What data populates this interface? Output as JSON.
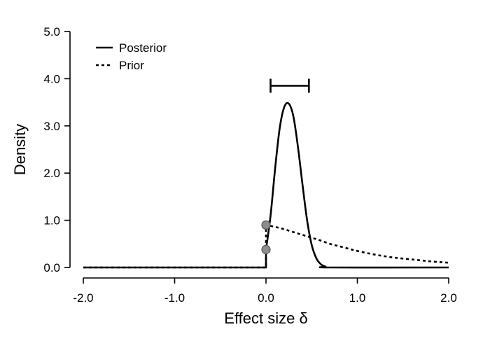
{
  "chart_data": {
    "type": "line",
    "title": "",
    "xlabel": "Effect size δ",
    "ylabel": "Density",
    "xlim": [
      -2.0,
      2.0
    ],
    "ylim": [
      0.0,
      5.0
    ],
    "x_ticks": [
      "-2.0",
      "-1.0",
      "0.0",
      "1.0",
      "2.0"
    ],
    "y_ticks": [
      "0.0",
      "1.0",
      "2.0",
      "3.0",
      "4.0",
      "5.0"
    ],
    "legend_position": "top-left",
    "grid": false,
    "series": [
      {
        "name": "Posterior",
        "style": "solid",
        "x": [
          -2.0,
          0.0,
          0.0,
          0.05,
          0.1,
          0.15,
          0.2,
          0.25,
          0.3,
          0.35,
          0.4,
          0.45,
          0.5,
          0.55,
          0.6,
          0.65,
          0.7,
          2.0
        ],
        "y": [
          0.0,
          0.0,
          0.38,
          1.1,
          2.1,
          2.95,
          3.4,
          3.47,
          3.2,
          2.55,
          1.75,
          1.0,
          0.48,
          0.2,
          0.07,
          0.02,
          0.0,
          0.0
        ]
      },
      {
        "name": "Prior",
        "style": "dotted",
        "x": [
          -2.0,
          0.0,
          0.0,
          0.1,
          0.2,
          0.3,
          0.4,
          0.5,
          0.6,
          0.7,
          0.8,
          0.9,
          1.0,
          1.2,
          1.4,
          1.6,
          1.8,
          2.0
        ],
        "y": [
          0.0,
          0.0,
          0.9,
          0.86,
          0.81,
          0.75,
          0.69,
          0.63,
          0.57,
          0.5,
          0.45,
          0.4,
          0.35,
          0.27,
          0.21,
          0.17,
          0.13,
          0.1
        ]
      }
    ],
    "points": [
      {
        "x": 0.0,
        "y": 0.9,
        "color": "#8c8c8c"
      },
      {
        "x": 0.0,
        "y": 0.38,
        "color": "#8c8c8c"
      }
    ],
    "interval": {
      "x_low": 0.05,
      "x_high": 0.47,
      "y": 3.85
    }
  }
}
